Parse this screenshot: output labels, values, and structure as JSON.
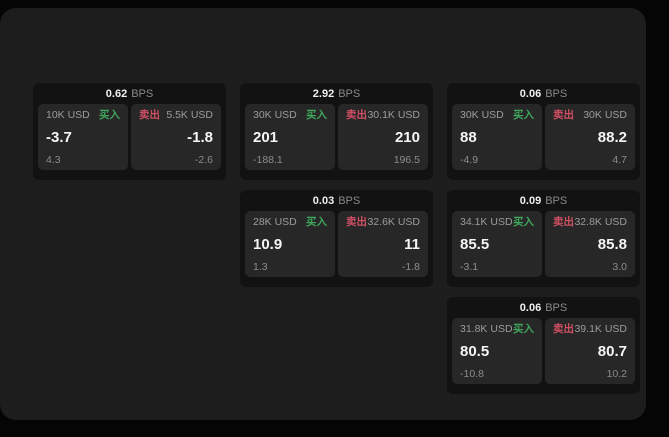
{
  "labels": {
    "buy": "买入",
    "sell": "卖出",
    "bps_unit": "BPS"
  },
  "colors": {
    "buy": "#3fa65c",
    "sell": "#cf4f63",
    "panel_bg": "#1d1d1d",
    "card_bg": "#121212",
    "pane_bg": "#272727"
  },
  "cards": [
    {
      "bps": "0.62",
      "row": 1,
      "col": 1,
      "buy": {
        "size": "10K USD",
        "value": "-3.7",
        "sub": "4.3"
      },
      "sell": {
        "size": "5.5K USD",
        "value": "-1.8",
        "sub": "-2.6"
      }
    },
    {
      "bps": "2.92",
      "row": 1,
      "col": 2,
      "buy": {
        "size": "30K USD",
        "value": "201",
        "sub": "-188.1"
      },
      "sell": {
        "size": "30.1K USD",
        "value": "210",
        "sub": "196.5"
      }
    },
    {
      "bps": "0.06",
      "row": 1,
      "col": 3,
      "buy": {
        "size": "30K USD",
        "value": "88",
        "sub": "-4.9"
      },
      "sell": {
        "size": "30K USD",
        "value": "88.2",
        "sub": "4.7"
      }
    },
    {
      "bps": "0.03",
      "row": 2,
      "col": 2,
      "buy": {
        "size": "28K USD",
        "value": "10.9",
        "sub": "1.3"
      },
      "sell": {
        "size": "32.6K USD",
        "value": "11",
        "sub": "-1.8"
      }
    },
    {
      "bps": "0.09",
      "row": 2,
      "col": 3,
      "buy": {
        "size": "34.1K USD",
        "value": "85.5",
        "sub": "-3.1"
      },
      "sell": {
        "size": "32.8K USD",
        "value": "85.8",
        "sub": "3.0"
      }
    },
    {
      "bps": "0.06",
      "row": 3,
      "col": 3,
      "buy": {
        "size": "31.8K USD",
        "value": "80.5",
        "sub": "-10.8"
      },
      "sell": {
        "size": "39.1K USD",
        "value": "80.7",
        "sub": "10.2"
      }
    }
  ]
}
